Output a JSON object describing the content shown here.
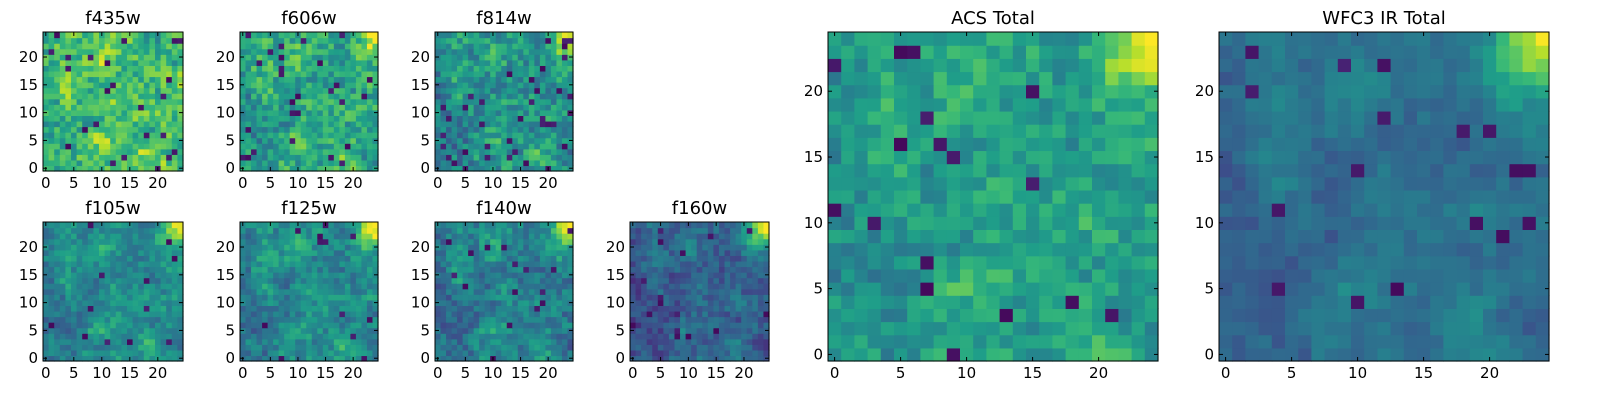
{
  "chart_data": [
    {
      "type": "heatmap",
      "title": "f435w",
      "grid_size": 25,
      "x_ticks": [
        "0",
        "5",
        "10",
        "15",
        "20"
      ],
      "y_ticks": [
        "0",
        "5",
        "10",
        "15",
        "20"
      ],
      "base_level": 0.68,
      "base_amp": 0.18,
      "noise": 0.3,
      "corner": 0.0,
      "dark_spots": 0.04
    },
    {
      "type": "heatmap",
      "title": "f606w",
      "grid_size": 25,
      "x_ticks": [
        "0",
        "5",
        "10",
        "15",
        "20"
      ],
      "y_ticks": [
        "0",
        "5",
        "10",
        "15",
        "20"
      ],
      "base_level": 0.58,
      "base_amp": 0.16,
      "noise": 0.3,
      "corner": 0.35,
      "dark_spots": 0.04
    },
    {
      "type": "heatmap",
      "title": "f814w",
      "grid_size": 25,
      "x_ticks": [
        "0",
        "5",
        "10",
        "15",
        "20"
      ],
      "y_ticks": [
        "0",
        "5",
        "10",
        "15",
        "20"
      ],
      "base_level": 0.5,
      "base_amp": 0.16,
      "noise": 0.3,
      "corner": 0.5,
      "dark_spots": 0.04
    },
    {
      "type": "heatmap",
      "title": "f105w",
      "grid_size": 25,
      "x_ticks": [
        "0",
        "5",
        "10",
        "15",
        "20"
      ],
      "y_ticks": [
        "0",
        "5",
        "10",
        "15",
        "20"
      ],
      "base_level": 0.46,
      "base_amp": 0.16,
      "noise": 0.2,
      "corner": 0.5,
      "dark_spots": 0.02
    },
    {
      "type": "heatmap",
      "title": "f125w",
      "grid_size": 25,
      "x_ticks": [
        "0",
        "5",
        "10",
        "15",
        "20"
      ],
      "y_ticks": [
        "0",
        "5",
        "10",
        "15",
        "20"
      ],
      "base_level": 0.46,
      "base_amp": 0.18,
      "noise": 0.22,
      "corner": 0.55,
      "dark_spots": 0.03
    },
    {
      "type": "heatmap",
      "title": "f140w",
      "grid_size": 25,
      "x_ticks": [
        "0",
        "5",
        "10",
        "15",
        "20"
      ],
      "y_ticks": [
        "0",
        "5",
        "10",
        "15",
        "20"
      ],
      "base_level": 0.42,
      "base_amp": 0.18,
      "noise": 0.22,
      "corner": 0.58,
      "dark_spots": 0.03
    },
    {
      "type": "heatmap",
      "title": "f160w",
      "grid_size": 25,
      "x_ticks": [
        "0",
        "5",
        "10",
        "15",
        "20"
      ],
      "y_ticks": [
        "0",
        "5",
        "10",
        "15",
        "20"
      ],
      "base_level": 0.3,
      "base_amp": 0.14,
      "noise": 0.18,
      "corner": 0.7,
      "dark_spots": 0.03
    },
    {
      "type": "heatmap",
      "title": "ACS Total",
      "grid_size": 25,
      "x_ticks": [
        "0",
        "5",
        "10",
        "15",
        "20"
      ],
      "y_ticks": [
        "0",
        "5",
        "10",
        "15",
        "20"
      ],
      "base_level": 0.55,
      "base_amp": 0.12,
      "noise": 0.22,
      "corner": 0.45,
      "dark_spots": 0.03
    },
    {
      "type": "heatmap",
      "title": "WFC3 IR Total",
      "grid_size": 25,
      "x_ticks": [
        "0",
        "5",
        "10",
        "15",
        "20"
      ],
      "y_ticks": [
        "0",
        "5",
        "10",
        "15",
        "20"
      ],
      "base_level": 0.36,
      "base_amp": 0.12,
      "noise": 0.1,
      "corner": 0.6,
      "dark_spots": 0.02
    }
  ]
}
